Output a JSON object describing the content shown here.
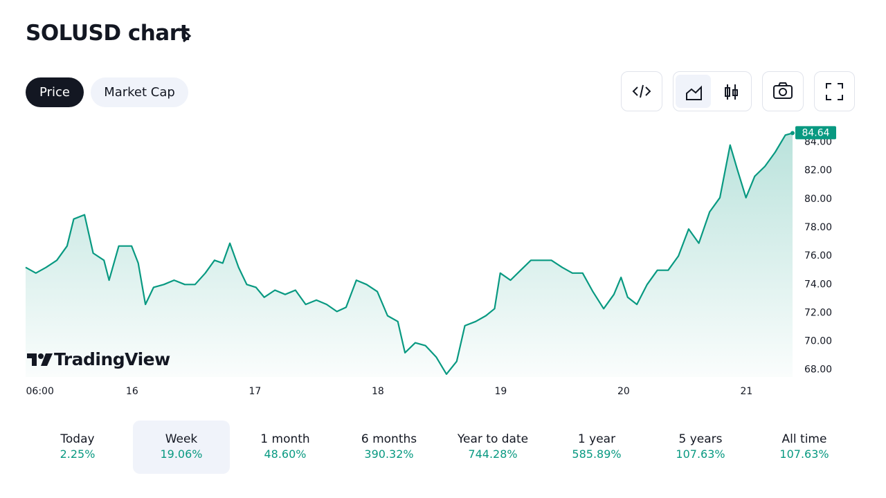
{
  "header": {
    "title": "SOLUSD chart",
    "tabs": [
      "Price",
      "Market Cap"
    ]
  },
  "logo": "TradingView",
  "chart_data": {
    "type": "area",
    "x": [
      3.2,
      5.2,
      7.2,
      9.3,
      11.3,
      12.6,
      14.7,
      16.4,
      18.5,
      19.5,
      21.4,
      23.9,
      25.2,
      26.6,
      28.2,
      30.2,
      32.2,
      34.3,
      36.3,
      38.3,
      40.1,
      41.7,
      43.1,
      44.8,
      46.4,
      48.2,
      49.8,
      51.9,
      53.9,
      55.9,
      57.9,
      60.0,
      62.0,
      64.0,
      65.8,
      67.8,
      69.8,
      71.9,
      73.9,
      75.9,
      77.3,
      79.3,
      81.3,
      83.4,
      85.4,
      87.4,
      89.0,
      91.1,
      93.1,
      94.8,
      95.9,
      97.9,
      99.9,
      101.9,
      103.9,
      105.9,
      108.0,
      110.0,
      112.0,
      114.0,
      116.1,
      118.1,
      119.5,
      120.8,
      122.6,
      124.6,
      126.6,
      128.7,
      130.7,
      132.7,
      134.7,
      136.8,
      138.8,
      140.8,
      142.2,
      143.9,
      145.6,
      147.6,
      149.6,
      151.6,
      153.0
    ],
    "series": [
      {
        "name": "SOLUSD",
        "color": "#089981",
        "values": [
          75.2,
          74.8,
          75.2,
          75.7,
          76.7,
          78.6,
          78.9,
          76.2,
          75.7,
          74.3,
          76.7,
          76.7,
          75.5,
          72.6,
          73.8,
          74.0,
          74.3,
          74.0,
          74.0,
          74.8,
          75.7,
          75.5,
          76.9,
          75.2,
          74.0,
          73.8,
          73.1,
          73.6,
          73.3,
          73.6,
          72.6,
          72.9,
          72.6,
          72.1,
          72.4,
          74.3,
          74.0,
          73.5,
          71.8,
          71.4,
          69.2,
          69.9,
          69.7,
          68.9,
          67.7,
          68.6,
          71.1,
          71.4,
          71.8,
          72.3,
          74.8,
          74.3,
          75.0,
          75.7,
          75.7,
          75.7,
          75.2,
          74.8,
          74.8,
          73.5,
          72.3,
          73.3,
          74.5,
          73.1,
          72.6,
          74.0,
          75.0,
          75.0,
          76.0,
          77.9,
          76.9,
          79.1,
          80.1,
          83.8,
          82.1,
          80.1,
          81.6,
          82.3,
          83.3,
          84.5,
          84.64
        ]
      }
    ],
    "xlim": [
      3.2,
      153.0
    ],
    "xticks": [
      {
        "value": 6,
        "label": "06:00"
      },
      {
        "value": 24,
        "label": "16"
      },
      {
        "value": 48,
        "label": "17"
      },
      {
        "value": 72,
        "label": "18"
      },
      {
        "value": 96,
        "label": "19"
      },
      {
        "value": 120,
        "label": "20"
      },
      {
        "value": 144,
        "label": "21"
      }
    ],
    "ylim": [
      67.5,
      85.0
    ],
    "yticks": [
      {
        "value": 68,
        "label": "68.00"
      },
      {
        "value": 70,
        "label": "70.00"
      },
      {
        "value": 72,
        "label": "72.00"
      },
      {
        "value": 74,
        "label": "74.00"
      },
      {
        "value": 76,
        "label": "76.00"
      },
      {
        "value": 78,
        "label": "78.00"
      },
      {
        "value": 80,
        "label": "80.00"
      },
      {
        "value": 82,
        "label": "82.00"
      },
      {
        "value": 84,
        "label": "84.00"
      }
    ]
  },
  "periods": [
    {
      "label": "Today",
      "change": "2.25%"
    },
    {
      "label": "Week",
      "change": "19.06%"
    },
    {
      "label": "1 month",
      "change": "48.60%"
    },
    {
      "label": "6 months",
      "change": "390.32%"
    },
    {
      "label": "Year to date",
      "change": "744.28%"
    },
    {
      "label": "1 year",
      "change": "585.89%"
    },
    {
      "label": "5 years",
      "change": "107.63%"
    },
    {
      "label": "All time",
      "change": "107.63%"
    }
  ]
}
